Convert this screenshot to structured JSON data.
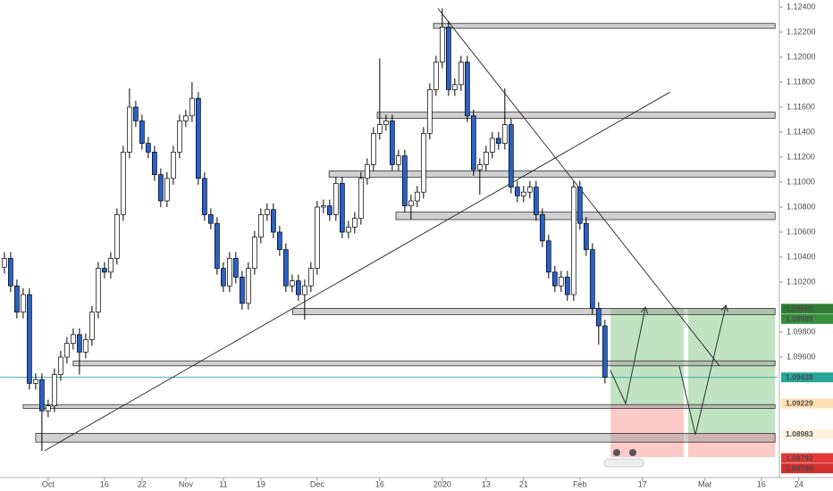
{
  "chart_data": {
    "type": "candlestick",
    "open": [
      1.1032,
      1.1039,
      1.1017,
      1.0996,
      1.101,
      1.0939,
      1.0942,
      1.0917,
      1.0921,
      1.0946,
      1.096,
      1.0971,
      1.0978,
      1.0964,
      1.0974,
      1.0996,
      1.1031,
      1.1028,
      1.1039,
      1.1074,
      1.1124,
      1.116,
      1.1149,
      1.1131,
      1.1124,
      1.1106,
      1.1085,
      1.1103,
      1.1124,
      1.1149,
      1.1153,
      1.1167,
      1.1103,
      1.1074,
      1.1067,
      1.1031,
      1.1017,
      1.1039,
      1.1024,
      1.1003,
      1.1031,
      1.1056,
      1.1074,
      1.1078,
      1.106,
      1.1046,
      1.1017,
      1.1021,
      1.101,
      1.1017,
      1.1031,
      1.108,
      1.1081,
      1.1074,
      1.1099,
      1.106,
      1.1064,
      1.1071,
      1.1103,
      1.1114,
      1.1139,
      1.1146,
      1.1149,
      1.1114,
      1.1121,
      1.1081,
      1.1085,
      1.1092,
      1.1139,
      1.1174,
      1.1196,
      1.1224,
      1.1174,
      1.1178,
      1.1196,
      1.1153,
      1.111,
      1.1114,
      1.1124,
      1.1135,
      1.1131,
      1.1146,
      1.1096,
      1.1089,
      1.1092,
      1.1096,
      1.1074,
      1.1053,
      1.1028,
      1.1017,
      1.1024,
      1.101,
      1.1096,
      1.1067,
      1.1046,
      1.0999,
      1.0985
    ],
    "high": [
      1.1044,
      1.1044,
      1.1022,
      1.1015,
      1.1015,
      1.0947,
      1.0947,
      1.0926,
      1.0951,
      1.0965,
      1.0976,
      1.0983,
      1.0983,
      1.0979,
      1.1001,
      1.1036,
      1.1036,
      1.1044,
      1.1079,
      1.1129,
      1.1175,
      1.1165,
      1.1154,
      1.1136,
      1.1129,
      1.1111,
      1.1108,
      1.1129,
      1.1154,
      1.1158,
      1.118,
      1.1172,
      1.1108,
      1.1079,
      1.1072,
      1.1036,
      1.1044,
      1.1044,
      1.1029,
      1.1036,
      1.1061,
      1.1079,
      1.1083,
      1.1083,
      1.1065,
      1.1051,
      1.1026,
      1.1026,
      1.1022,
      1.1036,
      1.1085,
      1.1086,
      1.1086,
      1.1104,
      1.1104,
      1.1069,
      1.1076,
      1.1108,
      1.1119,
      1.1144,
      1.1199,
      1.1154,
      1.1154,
      1.1126,
      1.1126,
      1.109,
      1.1097,
      1.1144,
      1.1179,
      1.1201,
      1.1239,
      1.1229,
      1.1183,
      1.1201,
      1.1201,
      1.1158,
      1.1119,
      1.1129,
      1.114,
      1.114,
      1.1175,
      1.1151,
      1.1101,
      1.1097,
      1.1101,
      1.1101,
      1.1079,
      1.1058,
      1.1033,
      1.1029,
      1.1029,
      1.1101,
      1.1101,
      1.1072,
      1.1051,
      1.1004,
      1.099
    ],
    "low": [
      1.1027,
      1.1012,
      1.0991,
      1.0991,
      1.0934,
      1.0934,
      1.0885,
      1.0912,
      1.0916,
      1.0941,
      1.0955,
      1.0966,
      1.0946,
      1.0959,
      1.0969,
      1.0991,
      1.1023,
      1.1023,
      1.1034,
      1.1069,
      1.1119,
      1.1144,
      1.1126,
      1.1119,
      1.1101,
      1.108,
      1.108,
      1.1098,
      1.1119,
      1.1144,
      1.1148,
      1.1098,
      1.1069,
      1.1062,
      1.1026,
      1.1012,
      1.1012,
      1.1019,
      1.0998,
      1.0998,
      1.1026,
      1.1051,
      1.1069,
      1.1055,
      1.1041,
      1.1012,
      1.1012,
      1.1005,
      1.099,
      1.1012,
      1.1026,
      1.1075,
      1.1069,
      1.1069,
      1.1055,
      1.1055,
      1.1059,
      1.1066,
      1.1098,
      1.1109,
      1.1134,
      1.1141,
      1.1109,
      1.1109,
      1.1076,
      1.107,
      1.108,
      1.1087,
      1.1134,
      1.1169,
      1.1191,
      1.1169,
      1.1169,
      1.1173,
      1.1148,
      1.1105,
      1.109,
      1.1109,
      1.1119,
      1.1126,
      1.1126,
      1.1091,
      1.1084,
      1.1084,
      1.1087,
      1.1069,
      1.1048,
      1.1023,
      1.1012,
      1.1012,
      1.1005,
      1.1005,
      1.1062,
      1.1041,
      1.0994,
      1.097,
      1.0939
    ],
    "close": [
      1.1039,
      1.1017,
      1.0996,
      1.101,
      1.0939,
      1.0942,
      1.0917,
      1.0921,
      1.0946,
      1.096,
      1.0971,
      1.0978,
      1.0964,
      1.0974,
      1.0996,
      1.1031,
      1.1028,
      1.1039,
      1.1074,
      1.1124,
      1.116,
      1.1149,
      1.1131,
      1.1124,
      1.1106,
      1.1085,
      1.1103,
      1.1124,
      1.1149,
      1.1153,
      1.1167,
      1.1103,
      1.1074,
      1.1067,
      1.1031,
      1.1017,
      1.1039,
      1.1024,
      1.1003,
      1.1031,
      1.1056,
      1.1074,
      1.1078,
      1.106,
      1.1046,
      1.1017,
      1.1021,
      1.101,
      1.1017,
      1.1031,
      1.108,
      1.1081,
      1.1074,
      1.1099,
      1.106,
      1.1064,
      1.1071,
      1.1103,
      1.1114,
      1.1139,
      1.1146,
      1.1149,
      1.1114,
      1.1121,
      1.1081,
      1.1085,
      1.1092,
      1.1139,
      1.1174,
      1.1196,
      1.1224,
      1.1174,
      1.1178,
      1.1196,
      1.1153,
      1.111,
      1.1114,
      1.1124,
      1.1135,
      1.1131,
      1.1146,
      1.1096,
      1.1089,
      1.1092,
      1.1096,
      1.1074,
      1.1053,
      1.1028,
      1.1017,
      1.1024,
      1.101,
      1.1096,
      1.1067,
      1.1046,
      1.0999,
      1.0985,
      1.0944
    ],
    "up_color": "#ffffff",
    "down_color": "#2962c4",
    "xlim": [
      -0.7,
      123.6
    ],
    "ylim": [
      1.08636,
      1.12457
    ],
    "xticks": [
      {
        "value": 7,
        "label": "Oct"
      },
      16,
      22,
      {
        "value": 29,
        "label": "Nov"
      },
      {
        "value": 35,
        "label": "11"
      },
      {
        "value": 41,
        "label": "19"
      },
      {
        "value": 50,
        "label": "Dec"
      },
      {
        "value": 60,
        "label": "16"
      },
      {
        "value": 70,
        "label": "2020"
      },
      {
        "value": 77,
        "label": "13"
      },
      {
        "value": 83,
        "label": "21"
      },
      {
        "value": 92,
        "label": "Feb"
      },
      {
        "value": 102,
        "label": "17"
      },
      {
        "value": 112,
        "label": "Mar"
      },
      {
        "value": 121,
        "label": "16"
      },
      {
        "value": 127,
        "label": "24"
      }
    ],
    "yticks": [
      {
        "value": 1.124,
        "label": "1.12400"
      },
      {
        "value": 1.122,
        "label": "1.12200"
      },
      {
        "value": 1.12,
        "label": "1.12000"
      },
      {
        "value": 1.118,
        "label": "1.11800"
      },
      {
        "value": 1.116,
        "label": "1.11600"
      },
      {
        "value": 1.114,
        "label": "1.11400"
      },
      {
        "value": 1.112,
        "label": "1.11200"
      },
      {
        "value": 1.11,
        "label": "1.11000"
      },
      {
        "value": 1.108,
        "label": "1.10800"
      },
      {
        "value": 1.106,
        "label": "1.10600"
      },
      {
        "value": 1.104,
        "label": "1.10400"
      },
      {
        "value": 1.102,
        "label": "1.10200"
      },
      {
        "value": 1.098,
        "label": "1.09800"
      },
      {
        "value": 1.096,
        "label": "1.09600"
      }
    ],
    "zones": [
      {
        "top": 1.1227,
        "bottom": 1.1223,
        "from": 68.6,
        "to": 123.2
      },
      {
        "top": 1.1156,
        "bottom": 1.1151,
        "from": 59.6,
        "to": 123.2
      },
      {
        "top": 1.1109,
        "bottom": 1.1104,
        "from": 51.9,
        "to": 123.2
      },
      {
        "top": 1.1076,
        "bottom": 1.107,
        "from": 62.6,
        "to": 123.2
      },
      {
        "top": 1.0999,
        "bottom": 1.0994,
        "from": 46.1,
        "to": 123.2
      },
      {
        "top": 1.0957,
        "bottom": 1.0953,
        "from": 11,
        "to": 123.2
      },
      {
        "top": 1.0922,
        "bottom": 1.0919,
        "from": 3,
        "to": 123.2
      },
      {
        "top": 1.0899,
        "bottom": 1.0892,
        "from": 5,
        "to": 123.2
      }
    ],
    "trendlines": [
      {
        "x": [
          6.4,
          106.4
        ],
        "y": [
          1.0885,
          1.1172
        ]
      },
      {
        "x": [
          69.3,
          114.3
        ],
        "y": [
          1.1239,
          1.0953
        ]
      }
    ],
    "positions": [
      {
        "from": 96.9,
        "to": 108.6,
        "target": 1.0999,
        "entry": 1.0922,
        "stop": 1.088
      },
      {
        "from": 109.3,
        "to": 123.2,
        "target": 1.0999,
        "entry": 1.0899,
        "stop": 1.088
      }
    ],
    "current_price": {
      "value": 1.09438,
      "label": "1.09438",
      "color": "#26a69a"
    },
    "price_labels": [
      {
        "value": 1.09987,
        "label": "1.09987",
        "color": "#2e7d32",
        "text_color": "#ffffff"
      },
      {
        "value": 1.09988,
        "label": "1.09988",
        "color": "#388e3c",
        "text_color": "#ffffff"
      },
      {
        "value": 1.09229,
        "label": "1.09229",
        "color": "#ffe0b2",
        "text_color": "#5d4037"
      },
      {
        "value": 1.08983,
        "label": "1.08983",
        "color": "#fff3e0",
        "text_color": "#5d4037"
      },
      {
        "value": 1.08792,
        "label": "1.08792",
        "color": "#e53935",
        "text_color": "#ffffff"
      },
      {
        "value": 1.08789,
        "label": "1.08789",
        "color": "#d32f2f",
        "text_color": "#ffffff"
      }
    ]
  }
}
